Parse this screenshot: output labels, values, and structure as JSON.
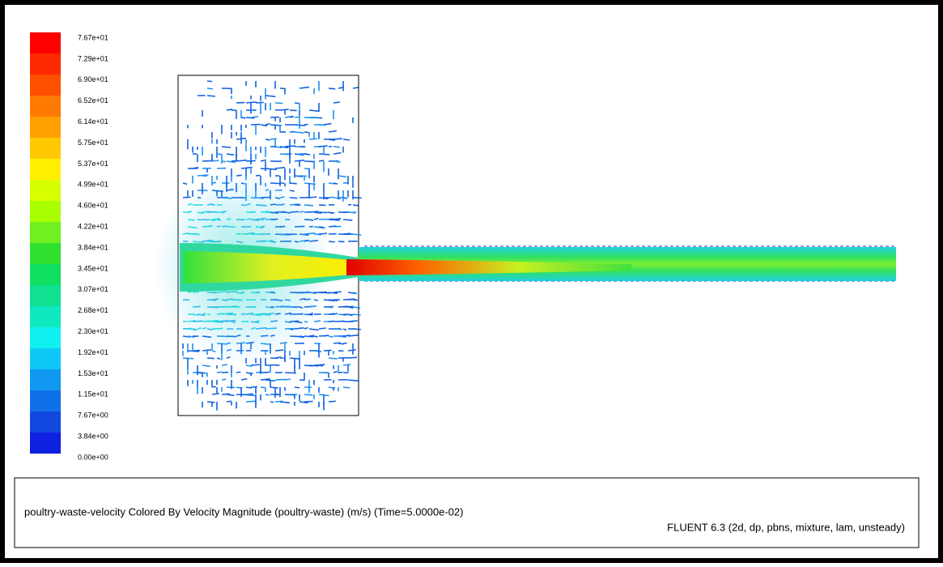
{
  "colorbar": {
    "labels": [
      "7.67e+01",
      "7.29e+01",
      "6.90e+01",
      "6.52e+01",
      "6.14e+01",
      "5.75e+01",
      "5.37e+01",
      "4.99e+01",
      "4.60e+01",
      "4.22e+01",
      "3.84e+01",
      "3.45e+01",
      "3.07e+01",
      "2.68e+01",
      "2.30e+01",
      "1.92e+01",
      "1.53e+01",
      "1.15e+01",
      "7.67e+00",
      "3.84e+00",
      "0.00e+00"
    ]
  },
  "caption": {
    "description": "poultry-waste-velocity Colored By Velocity Magnitude (poultry-waste)  (m/s)  (Time=5.0000e-02)",
    "solver": "FLUENT 6.3 (2d, dp, pbns, mixture, lam, unsteady)"
  }
}
